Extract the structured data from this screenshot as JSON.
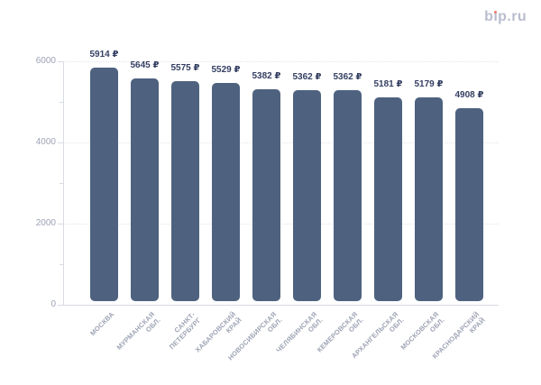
{
  "header": {
    "logo": {
      "part_b": "b",
      "part_i_dotless": "ı",
      "part_rest": "p.ru",
      "color": "#b9bdce",
      "dot_color": "#f0766a"
    }
  },
  "chart_data": {
    "type": "bar",
    "title": "",
    "categories": [
      "МОСКВА",
      "МУРМАНСКАЯ\nОБЛ.",
      "САНКТ-\nПЕТЕРБУРГ",
      "ХАБАРОВСКИЙ\nКРАЙ",
      "НОВОСИБИРСКАЯ\nОБЛ.",
      "ЧЕЛЯБИНСКАЯ\nОБЛ.",
      "КЕМЕРОВСКАЯ\nОБЛ.",
      "АРХАНГЕЛЬСКАЯ\nОБЛ.",
      "МОСКОВСКАЯ\nОБЛ.",
      "КРАСНОДАРСКИЙ\nКРАЙ"
    ],
    "values": [
      5914,
      5645,
      5575,
      5529,
      5382,
      5362,
      5362,
      5181,
      5179,
      4908
    ],
    "value_labels": [
      "5914 ₽",
      "5645 ₽",
      "5575 ₽",
      "5529 ₽",
      "5382 ₽",
      "5362 ₽",
      "5362 ₽",
      "5181 ₽",
      "5179 ₽",
      "4908 ₽"
    ],
    "unit": "₽",
    "xlabel": "",
    "ylabel": "",
    "ylim": [
      0,
      6000
    ],
    "ytick_values": [
      0,
      2000,
      4000,
      6000
    ],
    "ytick_labels": [
      "0",
      "2000",
      "4000",
      "6000"
    ],
    "ytick_minor_values": [
      1000,
      3000,
      5000
    ],
    "grid": "horizontal-dotted",
    "legend": "none",
    "colors": {
      "bar": "#4e6280",
      "value_label": "#343f62",
      "tick_label": "#9da3b4",
      "gridline": "#e2e5ec",
      "axis": "#d8dbe3"
    }
  }
}
